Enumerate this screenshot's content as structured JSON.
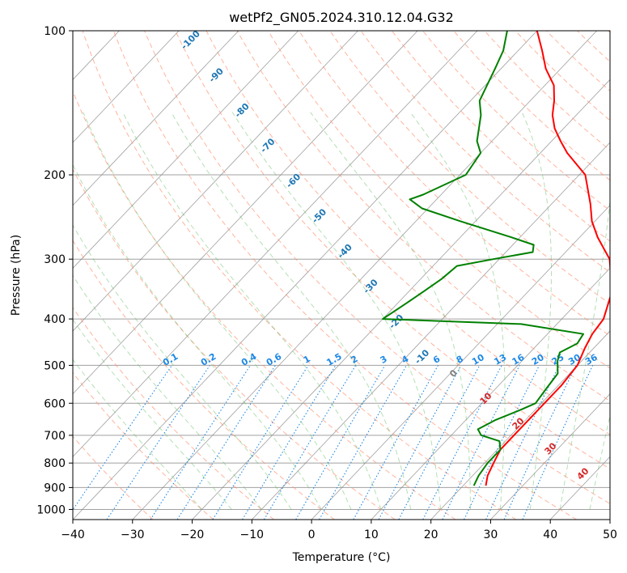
{
  "chart_data": {
    "type": "line",
    "subtype": "skew-T log-P diagram",
    "title": "wetPf2_GN05.2024.310.12.04.G32",
    "xlabel": "Temperature (°C)",
    "ylabel": "Pressure (hPa)",
    "xlim": [
      -40,
      50
    ],
    "ylim": [
      1050,
      100
    ],
    "y_scale": "log",
    "x_ticks": [
      "−40",
      "−30",
      "−20",
      "−10",
      "0",
      "10",
      "20",
      "30",
      "40",
      "50"
    ],
    "y_ticks": [
      "100",
      "200",
      "300",
      "400",
      "500",
      "600",
      "700",
      "800",
      "900",
      "1000"
    ],
    "grid": true,
    "series": [
      {
        "key": "temperature",
        "color": "#ff0000",
        "points": [
          [
            892,
            23.8
          ],
          [
            850,
            22.5
          ],
          [
            800,
            21.5
          ],
          [
            750,
            20.5
          ],
          [
            700,
            20.5
          ],
          [
            650,
            20.5
          ],
          [
            600,
            20.5
          ],
          [
            550,
            20.5
          ],
          [
            500,
            20.0
          ],
          [
            460,
            18.5
          ],
          [
            430,
            17.5
          ],
          [
            400,
            17.0
          ],
          [
            350,
            14.0
          ],
          [
            300,
            8.5
          ],
          [
            270,
            3.0
          ],
          [
            250,
            -0.5
          ],
          [
            230,
            -3.5
          ],
          [
            200,
            -9.0
          ],
          [
            180,
            -15.5
          ],
          [
            170,
            -18.5
          ],
          [
            160,
            -21.5
          ],
          [
            150,
            -24.0
          ],
          [
            140,
            -26.0
          ],
          [
            130,
            -28.5
          ],
          [
            120,
            -32.5
          ],
          [
            110,
            -36.0
          ],
          [
            100,
            -40.0
          ]
        ]
      },
      {
        "key": "dewpoint",
        "color": "#008000",
        "points": [
          [
            892,
            21.8
          ],
          [
            850,
            21.0
          ],
          [
            800,
            20.5
          ],
          [
            750,
            20.5
          ],
          [
            720,
            19.0
          ],
          [
            700,
            15.0
          ],
          [
            680,
            13.5
          ],
          [
            650,
            15.0
          ],
          [
            620,
            17.5
          ],
          [
            600,
            19.0
          ],
          [
            560,
            18.5
          ],
          [
            520,
            18.0
          ],
          [
            490,
            16.0
          ],
          [
            470,
            15.0
          ],
          [
            450,
            16.5
          ],
          [
            430,
            16.0
          ],
          [
            410,
            4.0
          ],
          [
            400,
            -20.0
          ],
          [
            370,
            -18.5
          ],
          [
            350,
            -17.5
          ],
          [
            330,
            -16.5
          ],
          [
            310,
            -16.0
          ],
          [
            300,
            -11.0
          ],
          [
            290,
            -5.5
          ],
          [
            280,
            -6.5
          ],
          [
            270,
            -11.5
          ],
          [
            250,
            -22.5
          ],
          [
            235,
            -31.0
          ],
          [
            225,
            -34.5
          ],
          [
            220,
            -33.0
          ],
          [
            200,
            -29.0
          ],
          [
            180,
            -30.0
          ],
          [
            170,
            -32.5
          ],
          [
            150,
            -36.0
          ],
          [
            140,
            -38.5
          ],
          [
            120,
            -41.0
          ],
          [
            110,
            -42.5
          ],
          [
            100,
            -45.0
          ]
        ]
      }
    ],
    "dry_adiabat_labels": [
      "-100",
      "-90",
      "-80",
      "-70",
      "-60",
      "-50",
      "-40",
      "-30",
      "-20",
      "-10",
      "0",
      "10",
      "20",
      "30",
      "40"
    ],
    "mixing_ratio_labels": [
      "0.1",
      "0.2",
      "0.4",
      "0.6",
      "1",
      "1.5",
      "2",
      "3",
      "4",
      "6",
      "8",
      "10",
      "13",
      "16",
      "20",
      "25",
      "30",
      "36"
    ],
    "moist_adiabat_label": "0",
    "colors": {
      "dry_adiabat": "#ff8c69",
      "moist_adiabat": "#5cb85c",
      "mixing_ratio": "#1e88e5",
      "dry_label_cold": "#1f77b4",
      "dry_label_warm": "#d62728",
      "isotherm": "#808080",
      "isobar": "#a0a0a0"
    }
  }
}
